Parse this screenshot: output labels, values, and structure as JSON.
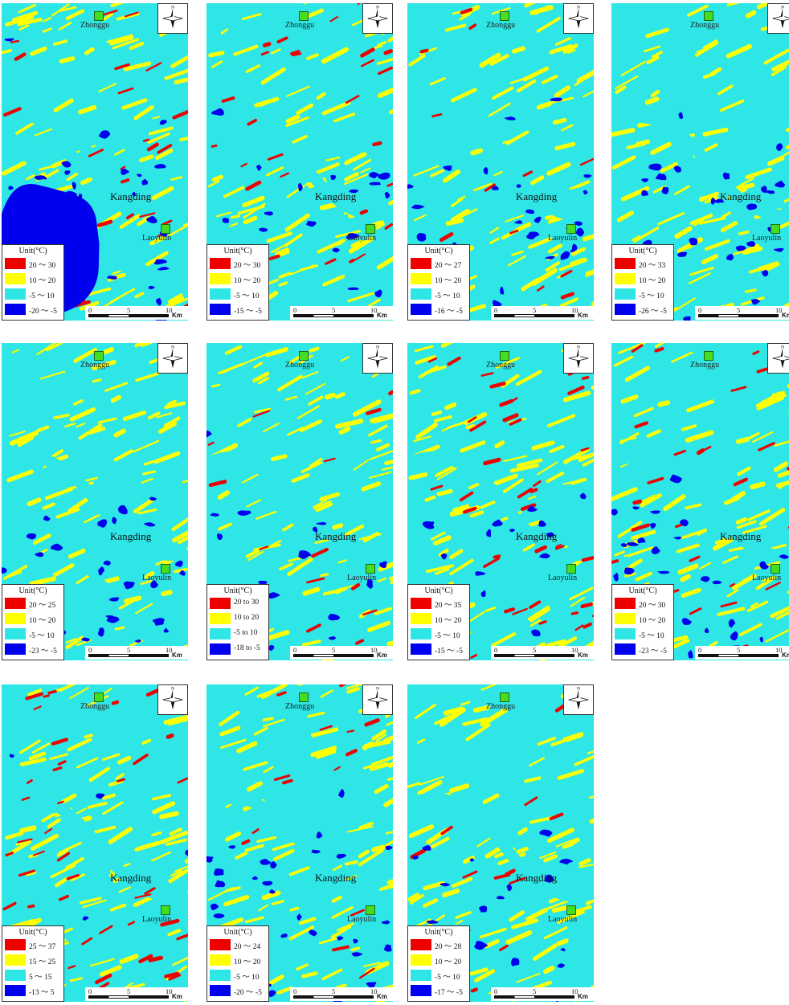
{
  "map_labels": {
    "north": "N",
    "towns": [
      "Zhonggu",
      "Kangding",
      "Laoyulin"
    ],
    "scale_ticks": [
      "0",
      "5",
      "10"
    ],
    "scale_unit": "Km",
    "legend_title": "Unit(°C)"
  },
  "colors": {
    "high": "#ee0000",
    "mid": "#ffff00",
    "low": "#2ee6e6",
    "cold": "#0000ee",
    "town_marker": "#44dd22"
  },
  "panels": [
    {
      "legend": [
        "20 ～ 30",
        "10 ～ 20",
        "-5 ～ 10",
        "-20 ～ -5"
      ],
      "cold_amount": 3,
      "hot_amount": 2
    },
    {
      "legend": [
        "20 ～ 30",
        "10 ～ 20",
        "-5 ～ 10",
        "-15 ～ -5"
      ],
      "cold_amount": 1,
      "hot_amount": 2
    },
    {
      "legend": [
        "20 ～ 27",
        "10 ～ 20",
        "-5 ～ 10",
        "-16 ～ -5"
      ],
      "cold_amount": 2,
      "hot_amount": 1
    },
    {
      "legend": [
        "20 ～ 33",
        "10 ～ 20",
        "-5 ～ 10",
        "-26 ～ -5"
      ],
      "cold_amount": 2,
      "hot_amount": 0
    },
    {
      "legend": [
        "20 ～ 25",
        "10 ～ 20",
        "-5 ～ 10",
        "-23 ～ -5"
      ],
      "cold_amount": 2,
      "hot_amount": 0
    },
    {
      "legend": [
        "20 to 30",
        "10 to 20",
        "-5 to 10",
        "-18 to -5"
      ],
      "cold_amount": 1,
      "hot_amount": 1
    },
    {
      "legend": [
        "20 ～ 35",
        "10 ～ 20",
        "-5 ～ 10",
        "-15 ～ -5"
      ],
      "cold_amount": 1,
      "hot_amount": 3
    },
    {
      "legend": [
        "20 ～ 30",
        "10 ～ 20",
        "-5 ～ 10",
        "-23 ～ -5"
      ],
      "cold_amount": 2,
      "hot_amount": 2
    },
    {
      "legend": [
        "25 ～ 37",
        "15 ～ 25",
        "5 ～ 15",
        "-13 ～ 5"
      ],
      "cold_amount": 0,
      "hot_amount": 3
    },
    {
      "legend": [
        "20 ～ 24",
        "10 ～ 20",
        "-5 ～ 10",
        "-20 ～ -5"
      ],
      "cold_amount": 2,
      "hot_amount": 1
    },
    {
      "legend": [
        "20 ～ 28",
        "10 ～ 20",
        "-5 ～ 10",
        "-17 ～ -5"
      ],
      "cold_amount": 1,
      "hot_amount": 1
    }
  ]
}
